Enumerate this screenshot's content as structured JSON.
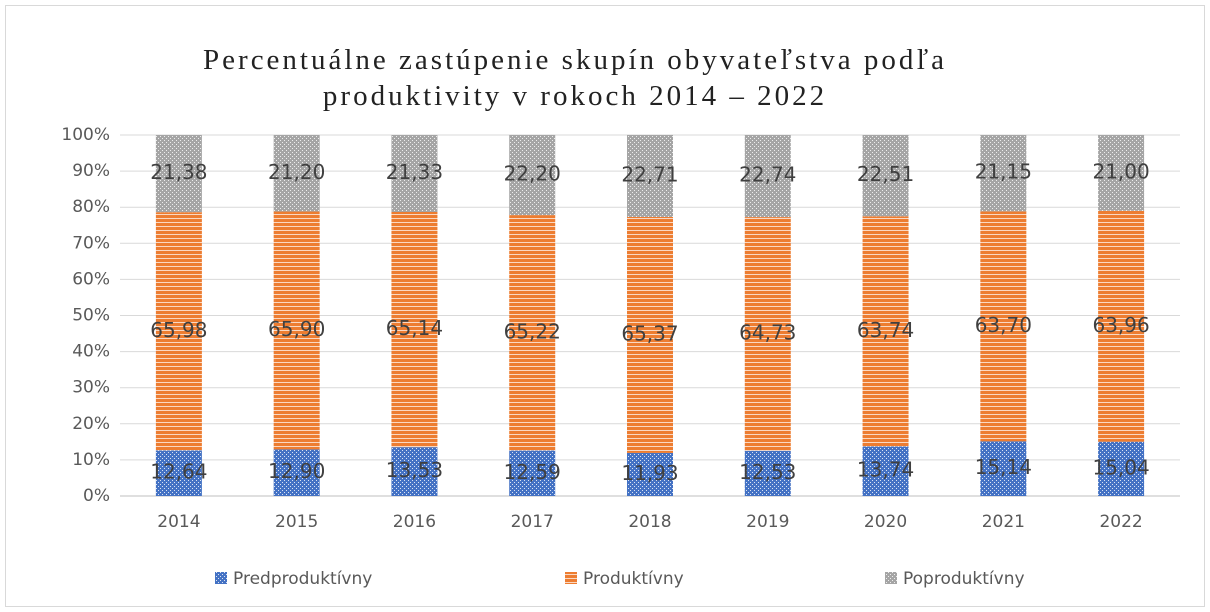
{
  "chart_data": {
    "type": "stacked_bar",
    "title": "Percentuálne zastúpenie skupín obyvateľstva podľa produktivity v rokoch 2014 – 2022",
    "categories": [
      "2014",
      "2015",
      "2016",
      "2017",
      "2018",
      "2019",
      "2020",
      "2021",
      "2022"
    ],
    "series": [
      {
        "name": "Predproduktívny",
        "color": "#4472c4",
        "values": [
          12.64,
          12.9,
          13.53,
          12.59,
          11.93,
          12.53,
          13.74,
          15.14,
          15.04
        ],
        "value_labels": [
          "12,64",
          "12,90",
          "13,53",
          "12,59",
          "11,93",
          "12,53",
          "13,74",
          "15,14",
          "15,04"
        ]
      },
      {
        "name": "Produktívny",
        "color": "#ed7d31",
        "values": [
          65.98,
          65.9,
          65.14,
          65.22,
          65.37,
          64.73,
          63.74,
          63.7,
          63.96
        ],
        "value_labels": [
          "65,98",
          "65,90",
          "65,14",
          "65,22",
          "65,37",
          "64,73",
          "63,74",
          "63,70",
          "63,96"
        ]
      },
      {
        "name": "Poproduktívny",
        "color": "#a5a5a5",
        "values": [
          21.38,
          21.2,
          21.33,
          22.2,
          22.71,
          22.74,
          22.51,
          21.15,
          21.0
        ],
        "value_labels": [
          "21,38",
          "21,20",
          "21,33",
          "22,20",
          "22,71",
          "22,74",
          "22,51",
          "21,15",
          "21,00"
        ]
      }
    ],
    "ylim": [
      0,
      100
    ],
    "yticks": [
      {
        "value": 0,
        "label": "0%"
      },
      {
        "value": 10,
        "label": "10%"
      },
      {
        "value": 20,
        "label": "20%"
      },
      {
        "value": 30,
        "label": "30%"
      },
      {
        "value": 40,
        "label": "40%"
      },
      {
        "value": 50,
        "label": "50%"
      },
      {
        "value": 60,
        "label": "60%"
      },
      {
        "value": 70,
        "label": "70%"
      },
      {
        "value": 80,
        "label": "80%"
      },
      {
        "value": 90,
        "label": "90%"
      },
      {
        "value": 100,
        "label": "100%"
      }
    ],
    "grid": true,
    "legend": "bottom"
  }
}
